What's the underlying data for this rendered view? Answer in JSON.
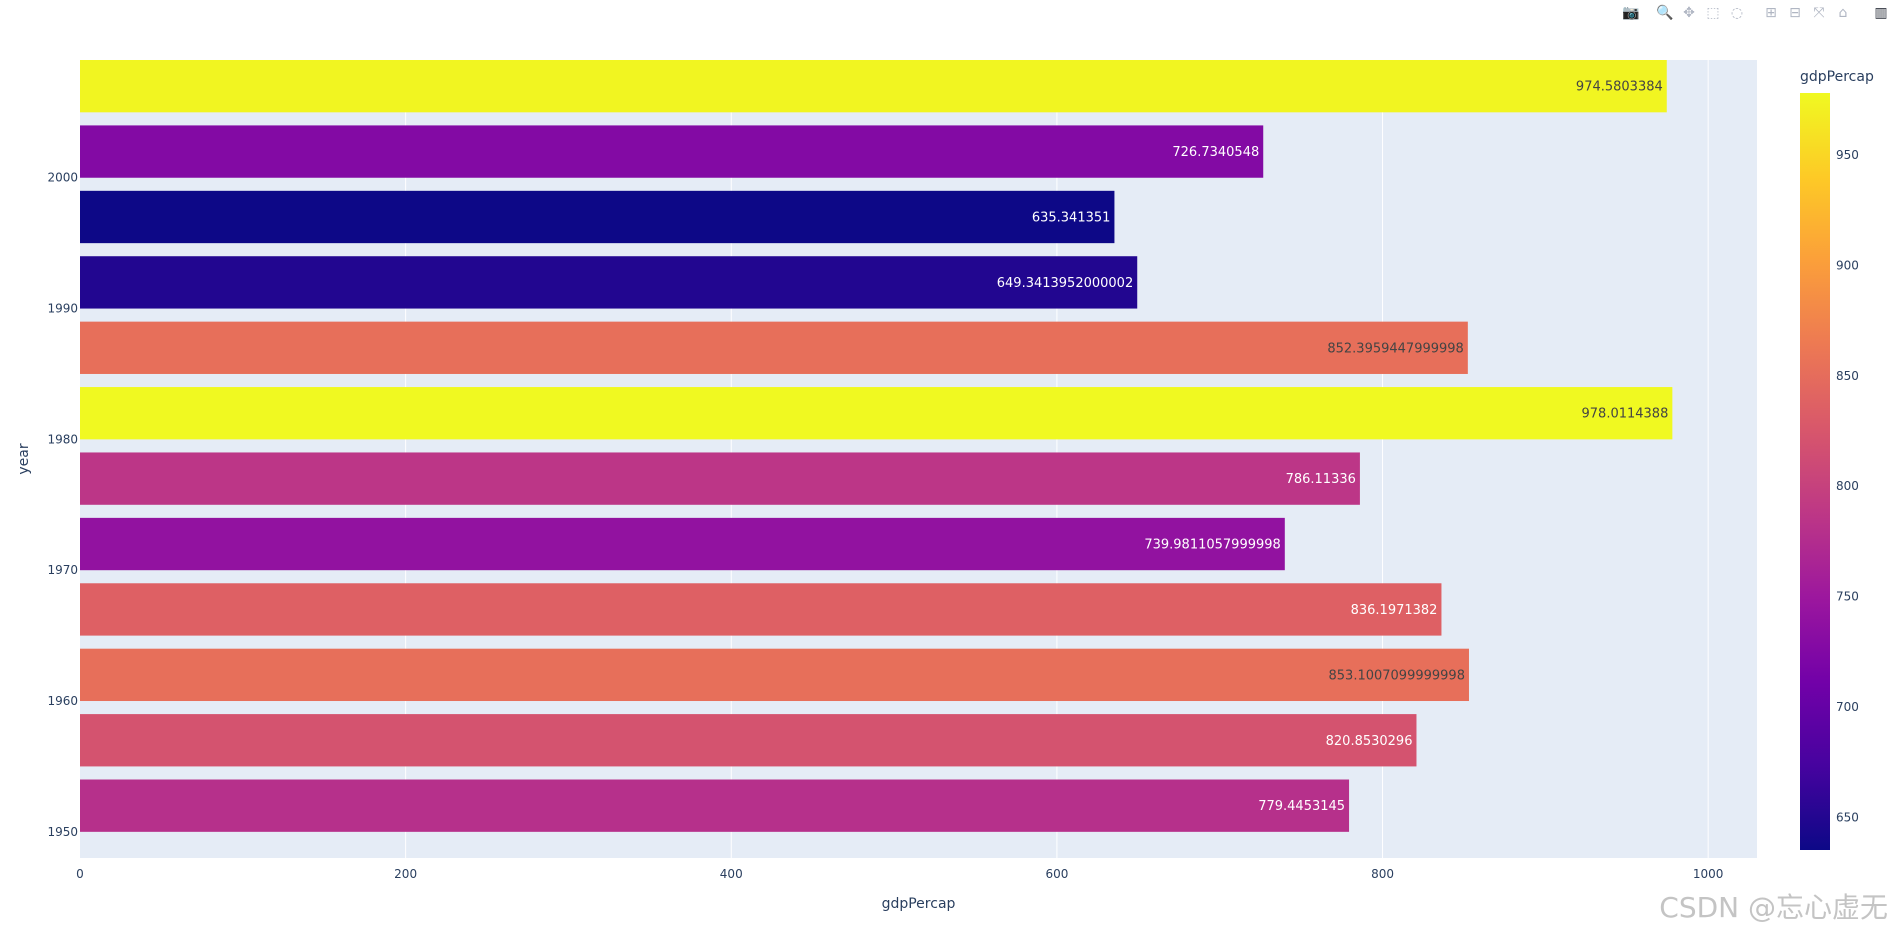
{
  "toolbar": {
    "tools": [
      {
        "name": "camera-icon",
        "glyph": "📷",
        "label": "Download plot as a png"
      },
      {
        "name": "zoom-icon",
        "glyph": "🔍",
        "label": "Zoom"
      },
      {
        "name": "pan-icon",
        "glyph": "✥",
        "label": "Pan"
      },
      {
        "name": "box-select-icon",
        "glyph": "⬚",
        "label": "Box Select"
      },
      {
        "name": "lasso-select-icon",
        "glyph": "◌",
        "label": "Lasso Select"
      },
      {
        "name": "zoom-in-icon",
        "glyph": "⊞",
        "label": "Zoom in"
      },
      {
        "name": "zoom-out-icon",
        "glyph": "⊟",
        "label": "Zoom out"
      },
      {
        "name": "autoscale-icon",
        "glyph": "⤧",
        "label": "Autoscale"
      },
      {
        "name": "reset-axes-icon",
        "glyph": "⌂",
        "label": "Reset axes"
      },
      {
        "name": "plotly-logo-icon",
        "glyph": "▥",
        "label": "Produced with Plotly"
      }
    ]
  },
  "watermark": "CSDN @忘心虚无",
  "colors": {
    "plot_bg": "#e5ecf6",
    "grid": "#ffffff",
    "axis_text": "#2a3f5f",
    "scale_low": "#0d0887",
    "scale_high": "#f0f921"
  },
  "chart_data": {
    "type": "bar",
    "orientation": "horizontal",
    "xlabel": "gdpPercap",
    "ylabel": "year",
    "xlim": [
      0,
      1030
    ],
    "ylim": [
      1948,
      2009
    ],
    "grid": true,
    "x_ticks": [
      0,
      200,
      400,
      600,
      800,
      1000
    ],
    "y_ticks": [
      1950,
      1960,
      1970,
      1980,
      1990,
      2000
    ],
    "bars": [
      {
        "year": 1952,
        "value": 779.4453145,
        "label": "779.4453145"
      },
      {
        "year": 1957,
        "value": 820.8530296,
        "label": "820.8530296"
      },
      {
        "year": 1962,
        "value": 853.1007099999998,
        "label": "853.1007099999998"
      },
      {
        "year": 1967,
        "value": 836.1971382,
        "label": "836.1971382"
      },
      {
        "year": 1972,
        "value": 739.9811057999998,
        "label": "739.9811057999998"
      },
      {
        "year": 1977,
        "value": 786.11336,
        "label": "786.11336"
      },
      {
        "year": 1982,
        "value": 978.0114388,
        "label": "978.0114388"
      },
      {
        "year": 1987,
        "value": 852.3959447999998,
        "label": "852.3959447999998"
      },
      {
        "year": 1992,
        "value": 649.3413952000002,
        "label": "649.3413952000002"
      },
      {
        "year": 1997,
        "value": 635.341351,
        "label": "635.341351"
      },
      {
        "year": 2002,
        "value": 726.7340548,
        "label": "726.7340548"
      },
      {
        "year": 2007,
        "value": 974.5803384,
        "label": "974.5803384"
      }
    ],
    "colorbar": {
      "title": "gdpPercap",
      "range": [
        635.341351,
        978.0114388
      ],
      "ticks": [
        650,
        700,
        750,
        800,
        850,
        900,
        950
      ]
    }
  }
}
